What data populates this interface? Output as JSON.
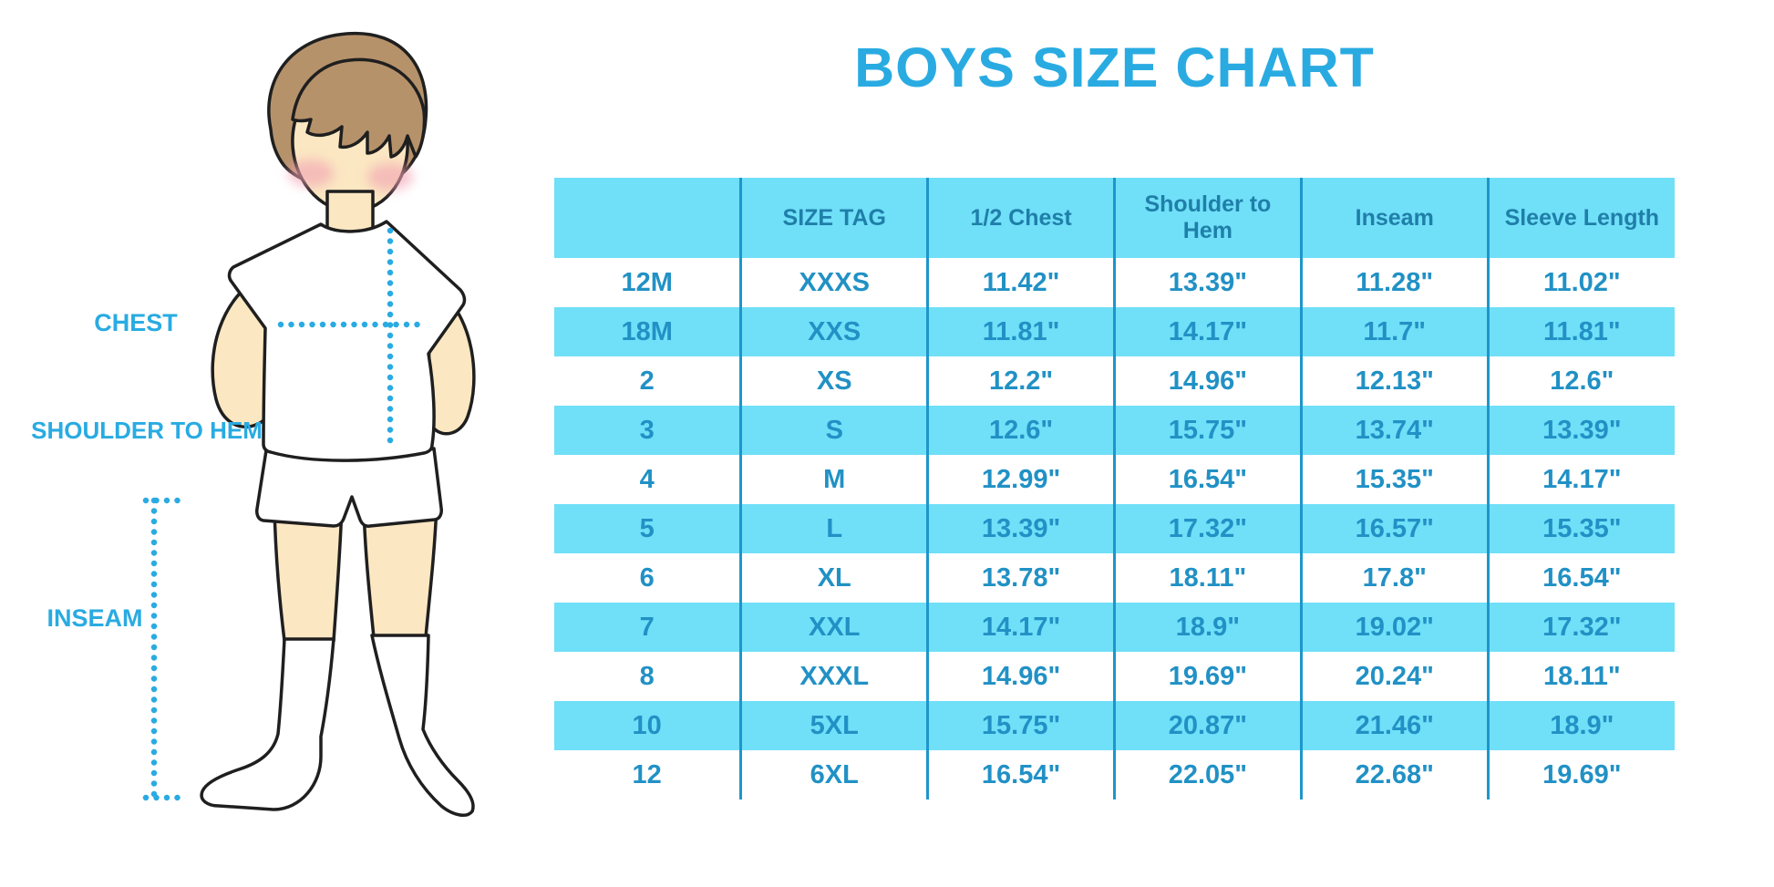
{
  "title": "BOYS SIZE CHART",
  "colors": {
    "accent": "#29ABE2",
    "stripe": "#70DFF8",
    "divider": "#1D96CC",
    "header_text": "#1F7FA9",
    "cell_text": "#2191C5",
    "outline": "#1F1F1F",
    "skin": "#FBE7C2",
    "hair": "#B6926B",
    "blush": "#F2A3B3"
  },
  "figure_labels": {
    "chest": "CHEST",
    "shoulder_to_hem": "SHOULDER TO HEM",
    "inseam": "INSEAM"
  },
  "table": {
    "columns": [
      "",
      "SIZE TAG",
      "1/2 Chest",
      "Shoulder to Hem",
      "Inseam",
      "Sleeve Length"
    ],
    "rows": [
      [
        "12M",
        "XXXS",
        "11.42\"",
        "13.39\"",
        "11.28\"",
        "11.02\""
      ],
      [
        "18M",
        "XXS",
        "11.81\"",
        "14.17\"",
        "11.7\"",
        "11.81\""
      ],
      [
        "2",
        "XS",
        "12.2\"",
        "14.96\"",
        "12.13\"",
        "12.6\""
      ],
      [
        "3",
        "S",
        "12.6\"",
        "15.75\"",
        "13.74\"",
        "13.39\""
      ],
      [
        "4",
        "M",
        "12.99\"",
        "16.54\"",
        "15.35\"",
        "14.17\""
      ],
      [
        "5",
        "L",
        "13.39\"",
        "17.32\"",
        "16.57\"",
        "15.35\""
      ],
      [
        "6",
        "XL",
        "13.78\"",
        "18.11\"",
        "17.8\"",
        "16.54\""
      ],
      [
        "7",
        "XXL",
        "14.17\"",
        "18.9\"",
        "19.02\"",
        "17.32\""
      ],
      [
        "8",
        "XXXL",
        "14.96\"",
        "19.69\"",
        "20.24\"",
        "18.11\""
      ],
      [
        "10",
        "5XL",
        "15.75\"",
        "20.87\"",
        "21.46\"",
        "18.9\""
      ],
      [
        "12",
        "6XL",
        "16.54\"",
        "22.05\"",
        "22.68\"",
        "19.69\""
      ]
    ]
  },
  "chart_data": {
    "type": "table",
    "title": "BOYS SIZE CHART",
    "units": "inches",
    "categories": [
      "12M",
      "18M",
      "2",
      "3",
      "4",
      "5",
      "6",
      "7",
      "8",
      "10",
      "12"
    ],
    "series": [
      {
        "name": "SIZE TAG",
        "values": [
          "XXXS",
          "XXS",
          "XS",
          "S",
          "M",
          "L",
          "XL",
          "XXL",
          "XXXL",
          "5XL",
          "6XL"
        ]
      },
      {
        "name": "1/2 Chest",
        "values": [
          11.42,
          11.81,
          12.2,
          12.6,
          12.99,
          13.39,
          13.78,
          14.17,
          14.96,
          15.75,
          16.54
        ]
      },
      {
        "name": "Shoulder to Hem",
        "values": [
          13.39,
          14.17,
          14.96,
          15.75,
          16.54,
          17.32,
          18.11,
          18.9,
          19.69,
          20.87,
          22.05
        ]
      },
      {
        "name": "Inseam",
        "values": [
          11.28,
          11.7,
          12.13,
          13.74,
          15.35,
          16.57,
          17.8,
          19.02,
          20.24,
          21.46,
          22.68
        ]
      },
      {
        "name": "Sleeve Length",
        "values": [
          11.02,
          11.81,
          12.6,
          13.39,
          14.17,
          15.35,
          16.54,
          17.32,
          18.11,
          18.9,
          19.69
        ]
      }
    ],
    "layout": {
      "row_striping": "alternate light-cyan / white",
      "grid": "vertical column dividers only"
    }
  }
}
